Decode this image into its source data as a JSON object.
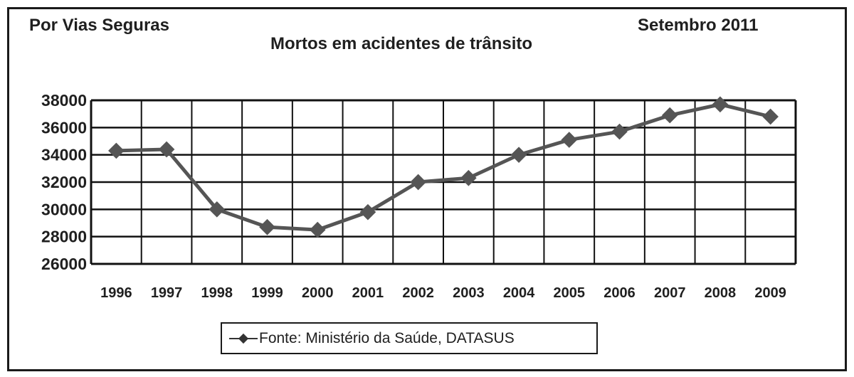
{
  "header": {
    "source_label": "Por Vias Seguras",
    "title": "Mortos em acidentes de trânsito",
    "date_label": "Setembro 2011"
  },
  "legend": {
    "entry": "Fonte: Ministério da Saúde, DATASUS"
  },
  "colors": {
    "line": "#555555",
    "grid": "#111111",
    "text": "#1f1f1f"
  },
  "chart_data": {
    "type": "line",
    "title": "Mortos em acidentes de trânsito",
    "xlabel": "",
    "ylabel": "",
    "categories": [
      "1996",
      "1997",
      "1998",
      "1999",
      "2000",
      "2001",
      "2002",
      "2003",
      "2004",
      "2005",
      "2006",
      "2007",
      "2008",
      "2009"
    ],
    "series": [
      {
        "name": "Fonte: Ministério da Saúde, DATASUS",
        "values": [
          34300,
          34400,
          30000,
          28700,
          28500,
          29800,
          32000,
          32300,
          34000,
          35100,
          35700,
          36900,
          37700,
          36800
        ]
      }
    ],
    "ylim": [
      26000,
      38000
    ],
    "yticks": [
      "38000",
      "36000",
      "34000",
      "32000",
      "30000",
      "28000",
      "26000"
    ],
    "grid": true,
    "legend_position": "bottom-center"
  }
}
